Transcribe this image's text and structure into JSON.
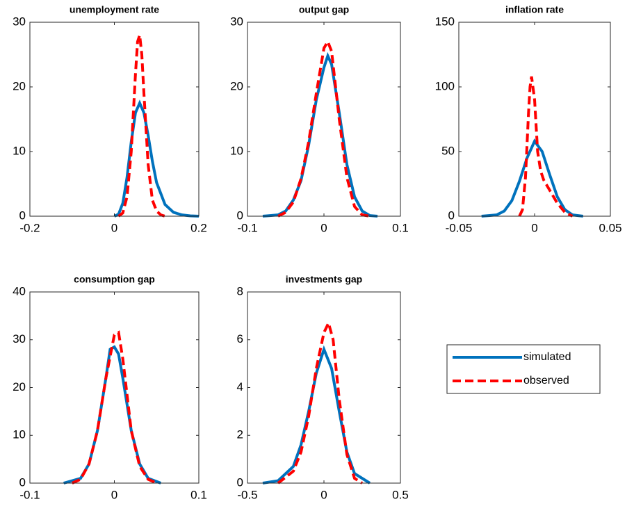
{
  "chart_data": [
    {
      "type": "line",
      "title": "unemployment rate",
      "xlim": [
        -0.2,
        0.2
      ],
      "xticks": [
        -0.2,
        0,
        0.2
      ],
      "ylim": [
        0,
        30
      ],
      "yticks": [
        0,
        10,
        20,
        30
      ],
      "series": [
        {
          "name": "simulated",
          "color": "#0072bd",
          "style": "solid",
          "x": [
            0,
            0.01,
            0.02,
            0.03,
            0.04,
            0.05,
            0.06,
            0.07,
            0.08,
            0.09,
            0.1,
            0.12,
            0.14,
            0.16,
            0.18,
            0.2
          ],
          "values": [
            0,
            0.3,
            2,
            6,
            11.5,
            16,
            17.5,
            16,
            12.5,
            8.5,
            5.2,
            1.8,
            0.6,
            0.2,
            0.05,
            0
          ]
        },
        {
          "name": "observed",
          "color": "#ff0000",
          "style": "dashed",
          "x": [
            0.01,
            0.02,
            0.03,
            0.04,
            0.05,
            0.055,
            0.06,
            0.065,
            0.07,
            0.08,
            0.09,
            0.1,
            0.11,
            0.12
          ],
          "values": [
            0,
            0.5,
            3,
            10,
            22,
            27,
            28,
            25,
            19,
            8,
            2.5,
            0.8,
            0.2,
            0
          ]
        }
      ]
    },
    {
      "type": "line",
      "title": "output gap",
      "xlim": [
        -0.1,
        0.1
      ],
      "xticks": [
        -0.1,
        0,
        0.1
      ],
      "ylim": [
        0,
        30
      ],
      "yticks": [
        0,
        10,
        20,
        30
      ],
      "series": [
        {
          "name": "simulated",
          "color": "#0072bd",
          "style": "solid",
          "x": [
            -0.08,
            -0.06,
            -0.05,
            -0.04,
            -0.03,
            -0.02,
            -0.01,
            0,
            0.005,
            0.01,
            0.02,
            0.03,
            0.04,
            0.05,
            0.06,
            0.07
          ],
          "values": [
            0,
            0.2,
            0.8,
            2.5,
            5.5,
            11,
            18,
            23,
            24.8,
            23.5,
            16,
            8,
            3,
            0.8,
            0.1,
            0
          ]
        },
        {
          "name": "observed",
          "color": "#ff0000",
          "style": "dashed",
          "x": [
            -0.06,
            -0.05,
            -0.04,
            -0.03,
            -0.02,
            -0.01,
            0,
            0.005,
            0.01,
            0.02,
            0.03,
            0.04,
            0.05,
            0.06
          ],
          "values": [
            0,
            0.6,
            2.2,
            5.8,
            11.5,
            19,
            26,
            27,
            25.5,
            15,
            6,
            1.5,
            0.2,
            0
          ]
        }
      ]
    },
    {
      "type": "line",
      "title": "inflation rate",
      "xlim": [
        -0.05,
        0.05
      ],
      "xticks": [
        -0.05,
        0,
        0.05
      ],
      "ylim": [
        0,
        150
      ],
      "yticks": [
        0,
        50,
        100,
        150
      ],
      "series": [
        {
          "name": "simulated",
          "color": "#0072bd",
          "style": "solid",
          "x": [
            -0.035,
            -0.025,
            -0.02,
            -0.015,
            -0.01,
            -0.005,
            0,
            0.005,
            0.01,
            0.015,
            0.02,
            0.025,
            0.032
          ],
          "values": [
            0,
            1,
            4,
            12,
            27,
            45,
            58,
            50,
            32,
            15,
            5,
            1,
            0
          ]
        },
        {
          "name": "observed",
          "color": "#ff0000",
          "style": "dashed",
          "x": [
            -0.01,
            -0.008,
            -0.006,
            -0.004,
            -0.003,
            -0.002,
            0,
            0.002,
            0.004,
            0.006,
            0.01,
            0.015,
            0.02,
            0.025
          ],
          "values": [
            0,
            5,
            30,
            80,
            100,
            108,
            90,
            50,
            35,
            28,
            20,
            10,
            3,
            0
          ]
        }
      ]
    },
    {
      "type": "line",
      "title": "consumption gap",
      "xlim": [
        -0.1,
        0.1
      ],
      "xticks": [
        -0.1,
        0,
        0.1
      ],
      "ylim": [
        0,
        40
      ],
      "yticks": [
        0,
        10,
        20,
        30,
        40
      ],
      "series": [
        {
          "name": "simulated",
          "color": "#0072bd",
          "style": "solid",
          "x": [
            -0.06,
            -0.04,
            -0.03,
            -0.02,
            -0.01,
            -0.005,
            0,
            0.005,
            0.01,
            0.02,
            0.03,
            0.04,
            0.055
          ],
          "values": [
            0,
            1,
            4,
            11,
            22,
            28,
            28.5,
            27,
            22,
            11,
            4,
            1,
            0
          ]
        },
        {
          "name": "observed",
          "color": "#ff0000",
          "style": "dashed",
          "x": [
            -0.05,
            -0.04,
            -0.03,
            -0.02,
            -0.01,
            0,
            0.005,
            0.01,
            0.02,
            0.03,
            0.04,
            0.05
          ],
          "values": [
            0,
            0.8,
            4,
            11,
            22,
            31,
            31.5,
            26,
            11,
            3.5,
            0.8,
            0
          ]
        }
      ]
    },
    {
      "type": "line",
      "title": "investments gap",
      "legend": "outside",
      "xlim": [
        -0.5,
        0.5
      ],
      "xticks": [
        -0.5,
        0,
        0.5
      ],
      "ylim": [
        0,
        8
      ],
      "yticks": [
        0,
        2,
        4,
        6,
        8
      ],
      "series": [
        {
          "name": "simulated",
          "color": "#0072bd",
          "style": "solid",
          "x": [
            -0.4,
            -0.3,
            -0.2,
            -0.15,
            -0.1,
            -0.05,
            0,
            0.05,
            0.1,
            0.15,
            0.2,
            0.3
          ],
          "values": [
            0,
            0.1,
            0.7,
            1.6,
            3,
            4.6,
            5.6,
            4.8,
            3,
            1.3,
            0.4,
            0
          ]
        },
        {
          "name": "observed",
          "color": "#ff0000",
          "style": "dashed",
          "x": [
            -0.3,
            -0.2,
            -0.15,
            -0.1,
            -0.05,
            0,
            0.03,
            0.06,
            0.1,
            0.15,
            0.2,
            0.25
          ],
          "values": [
            0,
            0.5,
            1.3,
            2.8,
            4.8,
            6.3,
            6.7,
            6,
            3.5,
            1.2,
            0.2,
            0
          ]
        }
      ]
    }
  ]
}
